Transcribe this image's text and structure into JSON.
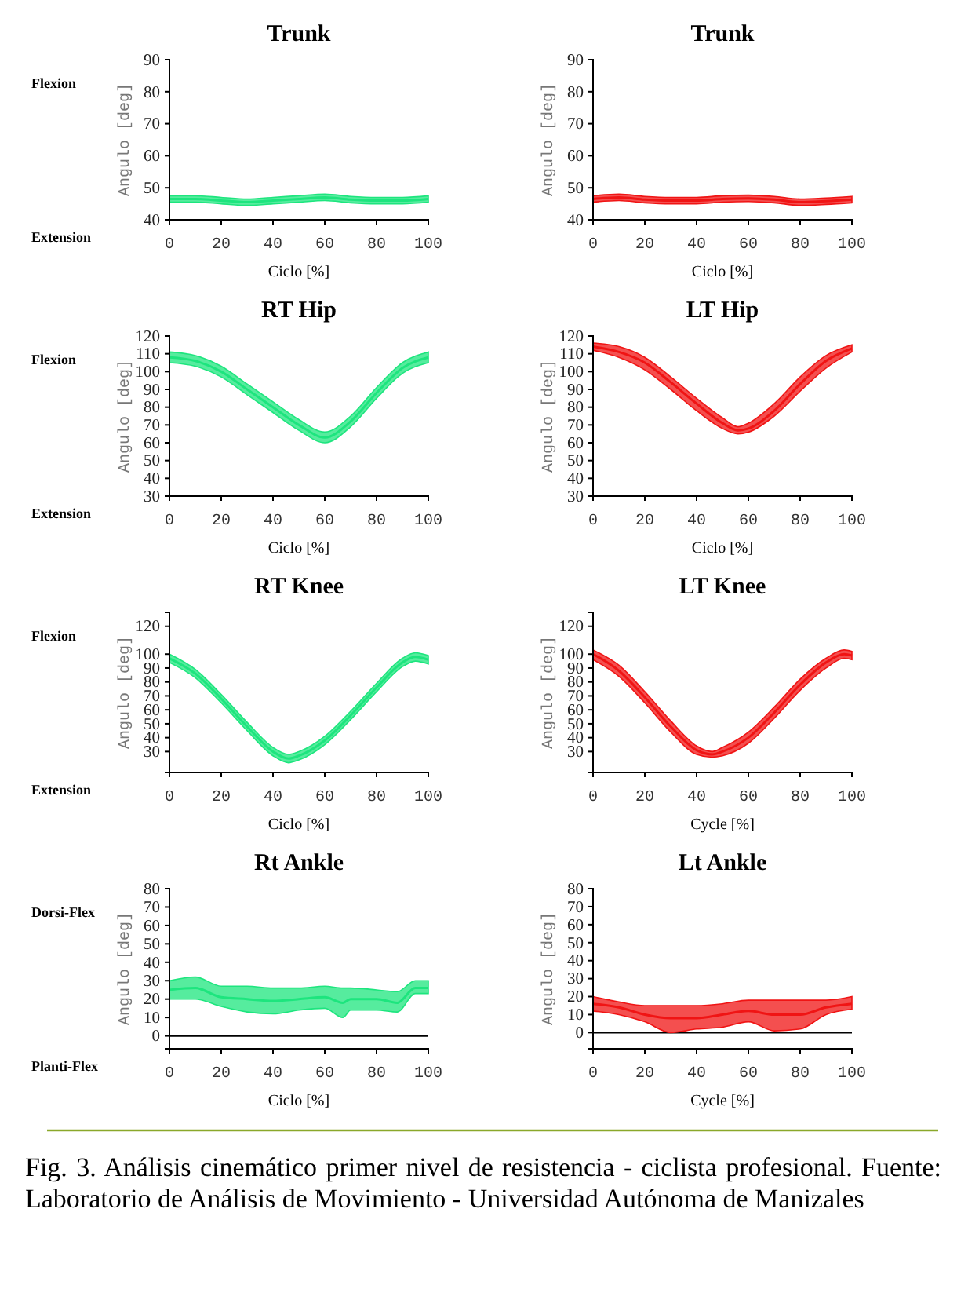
{
  "chart_data": [
    {
      "type": "line",
      "title": "Trunk",
      "xlabel": "Ciclo [%]",
      "ylabel": "Angulo [deg]",
      "annotations": [
        "Flexion",
        "Extension"
      ],
      "xlim": [
        0,
        100
      ],
      "xticks": [
        0,
        20,
        40,
        60,
        80,
        100
      ],
      "ylim": [
        40,
        90
      ],
      "yticks": [
        40,
        50,
        60,
        70,
        80,
        90
      ],
      "x": [
        0,
        10,
        20,
        30,
        40,
        50,
        60,
        70,
        80,
        90,
        100
      ],
      "series": [
        {
          "color": "#1de57e",
          "values": [
            46.5,
            46.5,
            46,
            45.5,
            46,
            46.5,
            47,
            46.3,
            46,
            46,
            46.5
          ],
          "lower": [
            45.5,
            45.5,
            45,
            44.5,
            45,
            45.5,
            46,
            45.3,
            45,
            45,
            45.5
          ],
          "upper": [
            47.5,
            47.5,
            47,
            46.5,
            47,
            47.5,
            48,
            47.3,
            47,
            47,
            47.5
          ]
        }
      ]
    },
    {
      "type": "line",
      "title": "Trunk",
      "xlabel": "Ciclo [%]",
      "ylabel": "Angulo [deg]",
      "xlim": [
        0,
        100
      ],
      "xticks": [
        0,
        20,
        40,
        60,
        80,
        100
      ],
      "ylim": [
        40,
        90
      ],
      "yticks": [
        40,
        50,
        60,
        70,
        80,
        90
      ],
      "x": [
        0,
        10,
        20,
        30,
        40,
        50,
        60,
        70,
        80,
        90,
        100
      ],
      "series": [
        {
          "color": "#f01414",
          "values": [
            46.5,
            47,
            46.3,
            46,
            46,
            46.5,
            46.7,
            46.3,
            45.5,
            45.8,
            46.3
          ],
          "lower": [
            45.5,
            46,
            45.3,
            45,
            45,
            45.5,
            45.7,
            45.3,
            44.5,
            44.8,
            45.3
          ],
          "upper": [
            47.5,
            48,
            47.3,
            47,
            47,
            47.5,
            47.7,
            47.3,
            46.5,
            46.8,
            47.3
          ]
        }
      ]
    },
    {
      "type": "line",
      "title": "RT Hip",
      "xlabel": "Ciclo [%]",
      "ylabel": "Angulo [deg]",
      "annotations": [
        "Flexion",
        "Extension"
      ],
      "xlim": [
        0,
        100
      ],
      "xticks": [
        0,
        20,
        40,
        60,
        80,
        100
      ],
      "ylim": [
        30,
        120
      ],
      "yticks": [
        30,
        40,
        50,
        60,
        70,
        80,
        90,
        100,
        110,
        120
      ],
      "x": [
        0,
        10,
        20,
        30,
        40,
        50,
        60,
        70,
        80,
        90,
        100
      ],
      "series": [
        {
          "color": "#1de57e",
          "values": [
            108,
            106,
            100,
            90,
            80,
            70,
            63,
            72,
            88,
            102,
            108
          ],
          "lower": [
            105,
            103,
            97,
            87,
            77,
            67,
            60,
            69,
            85,
            99,
            105
          ],
          "upper": [
            111,
            109,
            103,
            93,
            83,
            73,
            66,
            75,
            91,
            105,
            111
          ]
        }
      ]
    },
    {
      "type": "line",
      "title": "LT Hip",
      "xlabel": "Ciclo [%]",
      "ylabel": "Angulo [deg]",
      "xlim": [
        0,
        100
      ],
      "xticks": [
        0,
        20,
        40,
        60,
        80,
        100
      ],
      "ylim": [
        30,
        120
      ],
      "yticks": [
        30,
        40,
        50,
        60,
        70,
        80,
        90,
        100,
        110,
        120
      ],
      "x": [
        0,
        10,
        20,
        30,
        40,
        50,
        56,
        60,
        70,
        80,
        90,
        100
      ],
      "series": [
        {
          "color": "#f01414",
          "values": [
            114,
            111,
            105,
            94,
            82,
            71,
            67,
            68,
            78,
            93,
            106,
            113
          ],
          "lower": [
            112,
            108,
            101,
            90,
            78,
            68,
            65,
            66,
            75,
            89,
            102,
            111
          ],
          "upper": [
            116,
            114,
            108,
            97,
            85,
            74,
            69,
            71,
            82,
            97,
            109,
            115
          ]
        }
      ]
    },
    {
      "type": "line",
      "title": "RT Knee",
      "xlabel": "Ciclo [%]",
      "ylabel": "Angulo [deg]",
      "annotations": [
        "Flexion",
        "Extension"
      ],
      "xlim": [
        0,
        100
      ],
      "xticks": [
        0,
        20,
        40,
        60,
        80,
        100
      ],
      "ylim": [
        15,
        130
      ],
      "yticks": [
        30,
        40,
        50,
        60,
        70,
        80,
        90,
        100,
        120
      ],
      "x": [
        0,
        10,
        20,
        30,
        40,
        46,
        50,
        60,
        70,
        80,
        90,
        95,
        100
      ],
      "series": [
        {
          "color": "#1de57e",
          "values": [
            97,
            86,
            68,
            48,
            30,
            25,
            27,
            38,
            56,
            76,
            94,
            98,
            96
          ],
          "lower": [
            94,
            83,
            65,
            45,
            27,
            22,
            24,
            35,
            53,
            73,
            91,
            95,
            93
          ],
          "upper": [
            100,
            89,
            71,
            51,
            33,
            28,
            30,
            41,
            59,
            79,
            97,
            101,
            99
          ]
        }
      ]
    },
    {
      "type": "line",
      "title": "LT Knee",
      "xlabel": "Cycle [%]",
      "ylabel": "Angulo [deg]",
      "xlim": [
        0,
        100
      ],
      "xticks": [
        0,
        20,
        40,
        60,
        80,
        100
      ],
      "ylim": [
        15,
        130
      ],
      "yticks": [
        30,
        40,
        50,
        60,
        70,
        80,
        90,
        100,
        120
      ],
      "x": [
        0,
        10,
        20,
        30,
        40,
        46,
        50,
        60,
        70,
        80,
        90,
        97,
        100
      ],
      "series": [
        {
          "color": "#f01414",
          "values": [
            100,
            88,
            69,
            48,
            31,
            28,
            30,
            40,
            58,
            78,
            94,
            100,
            99
          ],
          "lower": [
            96,
            84,
            65,
            44,
            28,
            26,
            27,
            36,
            54,
            74,
            90,
            97,
            96
          ],
          "upper": [
            103,
            92,
            73,
            52,
            34,
            30,
            33,
            44,
            62,
            82,
            97,
            103,
            102
          ]
        }
      ]
    },
    {
      "type": "line",
      "title": "Rt Ankle",
      "xlabel": "Ciclo [%]",
      "ylabel": "Angulo [deg]",
      "annotations": [
        "Dorsi-Flex",
        "Planti-Flex"
      ],
      "xlim": [
        0,
        100
      ],
      "xticks": [
        0,
        20,
        40,
        60,
        80,
        100
      ],
      "ylim": [
        -7,
        80
      ],
      "yticks": [
        0,
        10,
        20,
        30,
        40,
        50,
        60,
        70,
        80
      ],
      "ref_lines": [
        {
          "axis": "y",
          "value": 0,
          "color": "#000000"
        }
      ],
      "x": [
        0,
        10,
        20,
        30,
        40,
        50,
        60,
        67,
        70,
        80,
        88,
        95,
        100
      ],
      "series": [
        {
          "color": "#1de57e",
          "values": [
            25,
            26,
            21,
            20,
            19,
            20,
            21,
            18,
            20,
            20,
            18,
            26,
            26
          ],
          "lower": [
            20,
            20,
            16,
            13,
            12,
            14,
            15,
            10,
            14,
            14,
            13,
            23,
            23
          ],
          "upper": [
            30,
            32,
            27,
            27,
            26,
            26,
            27,
            26,
            26,
            25,
            24,
            30,
            30
          ]
        }
      ]
    },
    {
      "type": "line",
      "title": "Lt Ankle",
      "xlabel": "Cycle [%]",
      "ylabel": "Angulo [deg]",
      "xlim": [
        0,
        100
      ],
      "xticks": [
        0,
        20,
        40,
        60,
        80,
        100
      ],
      "ylim": [
        -9,
        80
      ],
      "yticks": [
        0,
        10,
        20,
        30,
        40,
        50,
        60,
        70,
        80
      ],
      "ref_lines": [
        {
          "axis": "y",
          "value": 0,
          "color": "#000000"
        }
      ],
      "x": [
        0,
        10,
        20,
        30,
        40,
        50,
        60,
        70,
        80,
        90,
        100
      ],
      "series": [
        {
          "color": "#f01414",
          "values": [
            16,
            14,
            10,
            8,
            8,
            10,
            12,
            10,
            10,
            14,
            16
          ],
          "lower": [
            12,
            10,
            6,
            0,
            2,
            3,
            6,
            1,
            2,
            10,
            13
          ],
          "upper": [
            20,
            17,
            15,
            15,
            15,
            16,
            18,
            18,
            18,
            18,
            20
          ]
        }
      ]
    },
    {
      "type": "other",
      "annotations": [
        "Fig. 3. Análisis cinemático primer nivel de resistencia - ciclista profesional. Fuente: Laboratorio de Análisis de Movimiento - Universidad Autónoma de Manizales"
      ]
    }
  ]
}
